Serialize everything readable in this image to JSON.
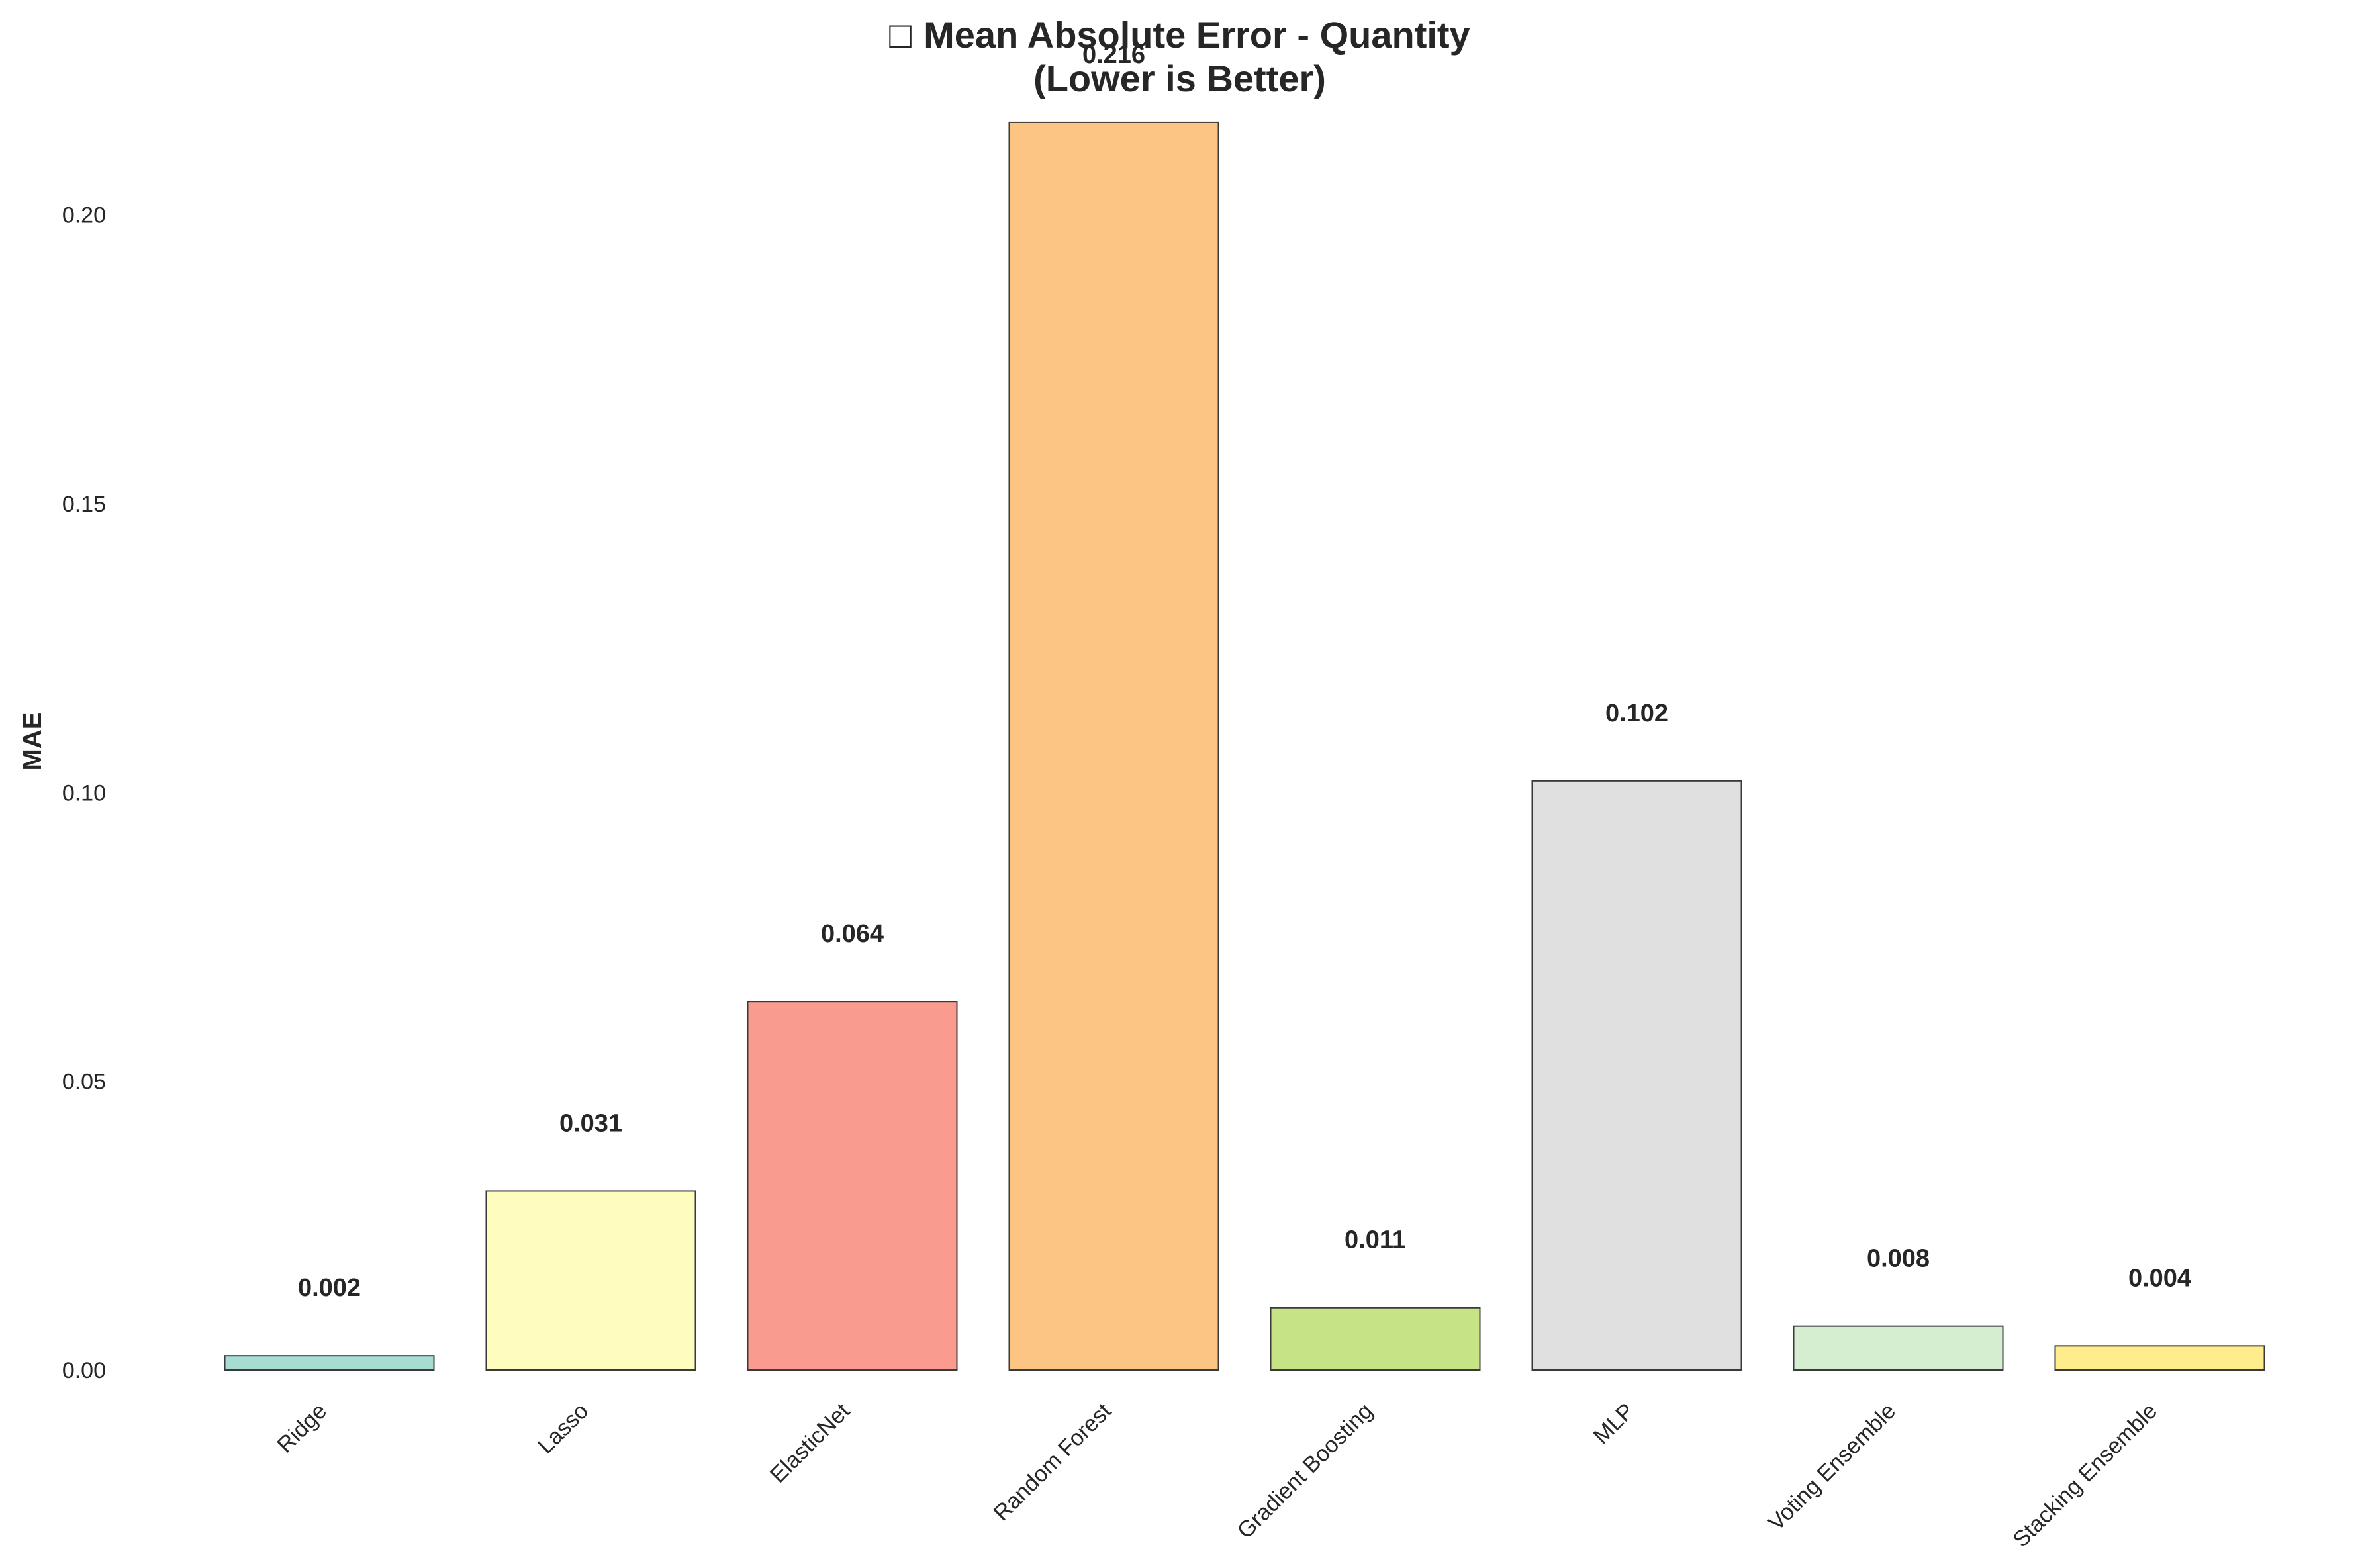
{
  "chart_data": {
    "type": "bar",
    "title_icon": "□",
    "title_line1": "Mean Absolute Error - Quantity",
    "title_line2": "(Lower is Better)",
    "xlabel": "",
    "ylabel": "MAE",
    "ylim": [
      0,
      0.22
    ],
    "yticks": [
      "0.00",
      "0.05",
      "0.10",
      "0.15",
      "0.20"
    ],
    "ytick_values": [
      0,
      0.05,
      0.1,
      0.15,
      0.2
    ],
    "grid": false,
    "categories": [
      "Ridge",
      "Lasso",
      "ElasticNet",
      "Random Forest",
      "Gradient Boosting",
      "MLP",
      "Voting Ensemble",
      "Stacking Ensemble"
    ],
    "values": [
      0.0025,
      0.031,
      0.0638,
      0.216,
      0.0108,
      0.102,
      0.0076,
      0.0042
    ],
    "value_labels": [
      "0.002",
      "0.031",
      "0.064",
      "0.216",
      "0.011",
      "0.102",
      "0.008",
      "0.004"
    ],
    "colors": [
      "#a6dcd2",
      "#fefdbe",
      "#fa9b8f",
      "#fdc584",
      "#c6e386",
      "#e0e0e0",
      "#d5eed0",
      "#ffec8a"
    ],
    "edge_color": "#3a3a3a"
  }
}
